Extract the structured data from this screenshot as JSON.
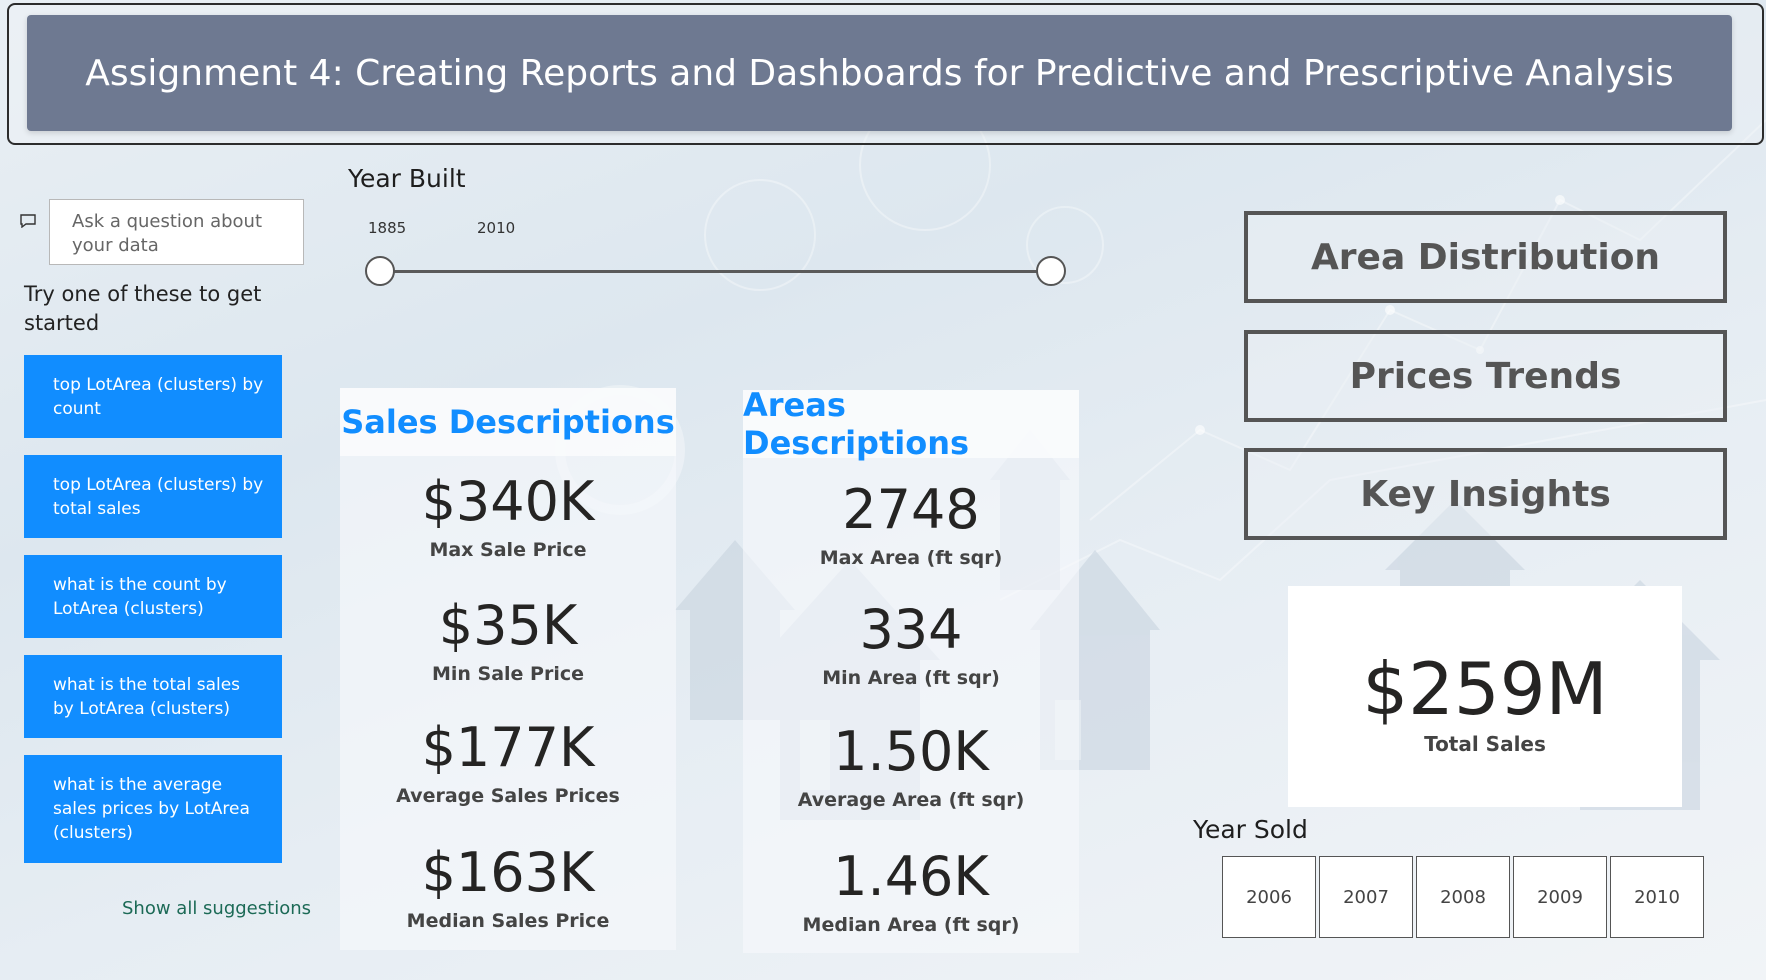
{
  "header": {
    "title": "Assignment 4: Creating Reports and Dashboards for Predictive and Prescriptive Analysis"
  },
  "qa": {
    "placeholder": "Ask a question about your data",
    "prompt": "Try one of these to get started",
    "suggestions": [
      "top LotArea (clusters) by count",
      "top LotArea (clusters) by total sales",
      "what is the count by LotArea (clusters)",
      "what is the total sales by LotArea (clusters)",
      "what is the average sales prices by LotArea (clusters)"
    ],
    "show_all": "Show all suggestions"
  },
  "year_built": {
    "title": "Year Built",
    "start": "1885",
    "end": "2010",
    "range_fraction": [
      0,
      1
    ]
  },
  "sales": {
    "title": "Sales Descriptions",
    "kpis": [
      {
        "value": "$340K",
        "label": "Max Sale Price"
      },
      {
        "value": "$35K",
        "label": "Min Sale Price"
      },
      {
        "value": "$177K",
        "label": "Average Sales Prices"
      },
      {
        "value": "$163K",
        "label": "Median Sales Price"
      }
    ]
  },
  "areas": {
    "title": "Areas Descriptions",
    "kpis": [
      {
        "value": "2748",
        "label": "Max Area (ft sqr)"
      },
      {
        "value": "334",
        "label": "Min Area (ft sqr)"
      },
      {
        "value": "1.50K",
        "label": "Average Area (ft sqr)"
      },
      {
        "value": "1.46K",
        "label": "Median Area (ft sqr)"
      }
    ]
  },
  "nav": {
    "area_distribution": "Area Distribution",
    "prices_trends": "Prices Trends",
    "key_insights": "Key Insights"
  },
  "total_sales": {
    "value": "$259M",
    "label": "Total Sales"
  },
  "year_sold": {
    "title": "Year Sold",
    "years": [
      "2006",
      "2007",
      "2008",
      "2009",
      "2010"
    ]
  },
  "colors": {
    "accent": "#118dff",
    "title_bar": "#6e7991",
    "button_border": "#555555"
  }
}
